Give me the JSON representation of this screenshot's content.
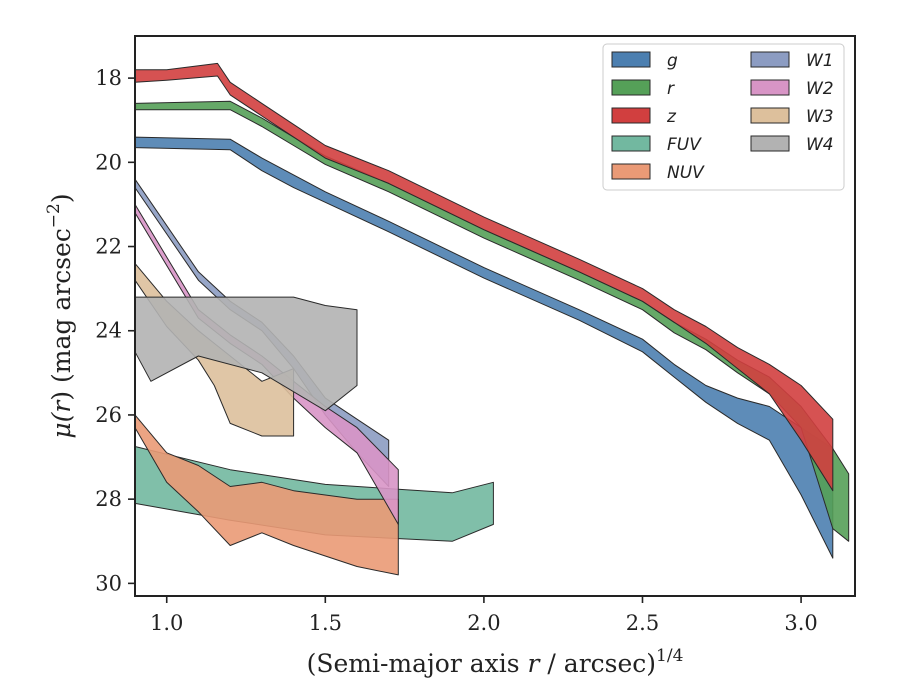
{
  "chart_data": {
    "type": "area",
    "title": "",
    "xlabel": "(Semi-major axis r / arcsec)",
    "xlabel_parts": {
      "pre": "(Semi-major axis ",
      "var": "r",
      "post": " / arcsec)",
      "exp": "1/4"
    },
    "ylabel": "μ(r) (mag arcsec−2)",
    "ylabel_parts": {
      "pre": "μ(",
      "var": "r",
      "post": ") (mag arcsec",
      "exp": "−2",
      "close": ")"
    },
    "xlim": [
      0.9,
      3.17
    ],
    "ylim": [
      30.3,
      17.0
    ],
    "y_inverted": true,
    "xticks": [
      1.0,
      1.5,
      2.0,
      2.5,
      3.0
    ],
    "xtick_labels": [
      "1.0",
      "1.5",
      "2.0",
      "2.5",
      "3.0"
    ],
    "yticks": [
      18,
      20,
      22,
      24,
      26,
      28,
      30
    ],
    "ytick_labels": [
      "18",
      "20",
      "22",
      "24",
      "26",
      "28",
      "30"
    ],
    "grid": false,
    "legend": {
      "position": "top-right",
      "columns": 2
    },
    "series": [
      {
        "name": "g",
        "color": "#4c7fb0",
        "upper": [
          [
            0.9,
            19.4
          ],
          [
            1.2,
            19.45
          ],
          [
            1.3,
            19.9
          ],
          [
            1.4,
            20.3
          ],
          [
            1.5,
            20.7
          ],
          [
            1.7,
            21.4
          ],
          [
            2.0,
            22.5
          ],
          [
            2.3,
            23.5
          ],
          [
            2.5,
            24.2
          ],
          [
            2.6,
            24.8
          ],
          [
            2.7,
            25.3
          ],
          [
            2.8,
            25.6
          ],
          [
            2.9,
            25.8
          ],
          [
            3.0,
            26.3
          ],
          [
            3.1,
            26.8
          ]
        ],
        "lower": [
          [
            0.9,
            19.65
          ],
          [
            1.2,
            19.7
          ],
          [
            1.3,
            20.2
          ],
          [
            1.4,
            20.6
          ],
          [
            1.5,
            20.95
          ],
          [
            1.7,
            21.65
          ],
          [
            2.0,
            22.75
          ],
          [
            2.3,
            23.75
          ],
          [
            2.5,
            24.5
          ],
          [
            2.6,
            25.1
          ],
          [
            2.7,
            25.7
          ],
          [
            2.8,
            26.2
          ],
          [
            2.9,
            26.6
          ],
          [
            3.0,
            27.9
          ],
          [
            3.1,
            29.4
          ]
        ]
      },
      {
        "name": "r",
        "color": "#55a058",
        "upper": [
          [
            0.9,
            18.6
          ],
          [
            1.2,
            18.55
          ],
          [
            1.3,
            18.95
          ],
          [
            1.4,
            19.4
          ],
          [
            1.5,
            19.85
          ],
          [
            1.7,
            20.5
          ],
          [
            2.0,
            21.6
          ],
          [
            2.3,
            22.6
          ],
          [
            2.5,
            23.3
          ],
          [
            2.6,
            23.8
          ],
          [
            2.7,
            24.2
          ],
          [
            2.8,
            24.7
          ],
          [
            2.9,
            25.1
          ],
          [
            3.0,
            25.8
          ],
          [
            3.1,
            26.8
          ],
          [
            3.15,
            27.4
          ]
        ],
        "lower": [
          [
            0.9,
            18.75
          ],
          [
            1.2,
            18.75
          ],
          [
            1.3,
            19.15
          ],
          [
            1.4,
            19.6
          ],
          [
            1.5,
            20.05
          ],
          [
            1.7,
            20.7
          ],
          [
            2.0,
            21.8
          ],
          [
            2.3,
            22.8
          ],
          [
            2.5,
            23.5
          ],
          [
            2.6,
            24.05
          ],
          [
            2.7,
            24.45
          ],
          [
            2.8,
            25.0
          ],
          [
            2.9,
            25.5
          ],
          [
            3.0,
            26.3
          ],
          [
            3.1,
            28.7
          ],
          [
            3.15,
            29.0
          ]
        ]
      },
      {
        "name": "z",
        "color": "#d13f3f",
        "upper": [
          [
            0.9,
            17.8
          ],
          [
            1.0,
            17.8
          ],
          [
            1.16,
            17.65
          ],
          [
            1.2,
            18.1
          ],
          [
            1.3,
            18.6
          ],
          [
            1.4,
            19.1
          ],
          [
            1.5,
            19.6
          ],
          [
            1.7,
            20.2
          ],
          [
            2.0,
            21.3
          ],
          [
            2.3,
            22.3
          ],
          [
            2.5,
            23.0
          ],
          [
            2.6,
            23.5
          ],
          [
            2.7,
            23.9
          ],
          [
            2.8,
            24.4
          ],
          [
            2.9,
            24.8
          ],
          [
            3.0,
            25.3
          ],
          [
            3.1,
            26.1
          ]
        ],
        "lower": [
          [
            0.9,
            18.1
          ],
          [
            1.0,
            18.05
          ],
          [
            1.16,
            17.95
          ],
          [
            1.2,
            18.4
          ],
          [
            1.3,
            18.9
          ],
          [
            1.4,
            19.4
          ],
          [
            1.5,
            19.9
          ],
          [
            1.7,
            20.5
          ],
          [
            2.0,
            21.6
          ],
          [
            2.3,
            22.6
          ],
          [
            2.5,
            23.3
          ],
          [
            2.6,
            23.8
          ],
          [
            2.7,
            24.3
          ],
          [
            2.8,
            24.9
          ],
          [
            2.9,
            25.5
          ],
          [
            3.0,
            26.6
          ],
          [
            3.1,
            27.8
          ]
        ]
      },
      {
        "name": "FUV",
        "color": "#72b8a0",
        "upper": [
          [
            0.9,
            26.75
          ],
          [
            1.2,
            27.3
          ],
          [
            1.5,
            27.65
          ],
          [
            1.9,
            27.85
          ],
          [
            2.03,
            27.6
          ]
        ],
        "lower": [
          [
            0.9,
            28.1
          ],
          [
            1.2,
            28.5
          ],
          [
            1.5,
            28.85
          ],
          [
            1.9,
            29.0
          ],
          [
            2.03,
            28.6
          ]
        ]
      },
      {
        "name": "NUV",
        "color": "#ea9a76",
        "upper": [
          [
            0.9,
            26.0
          ],
          [
            1.0,
            26.9
          ],
          [
            1.1,
            27.2
          ],
          [
            1.2,
            27.7
          ],
          [
            1.3,
            27.6
          ],
          [
            1.4,
            27.8
          ],
          [
            1.6,
            28.0
          ],
          [
            1.73,
            28.0
          ]
        ],
        "lower": [
          [
            0.9,
            26.3
          ],
          [
            1.0,
            27.6
          ],
          [
            1.1,
            28.3
          ],
          [
            1.2,
            29.1
          ],
          [
            1.3,
            28.8
          ],
          [
            1.4,
            29.1
          ],
          [
            1.6,
            29.6
          ],
          [
            1.73,
            29.8
          ]
        ]
      },
      {
        "name": "W1",
        "color": "#8c9cc2",
        "upper": [
          [
            0.9,
            20.4
          ],
          [
            1.1,
            22.6
          ],
          [
            1.2,
            23.3
          ],
          [
            1.3,
            23.8
          ],
          [
            1.4,
            24.6
          ],
          [
            1.5,
            25.6
          ],
          [
            1.6,
            26.1
          ],
          [
            1.7,
            26.6
          ]
        ],
        "lower": [
          [
            0.9,
            20.6
          ],
          [
            1.1,
            22.8
          ],
          [
            1.2,
            23.5
          ],
          [
            1.3,
            24.0
          ],
          [
            1.4,
            24.9
          ],
          [
            1.5,
            26.0
          ],
          [
            1.6,
            26.9
          ],
          [
            1.7,
            27.7
          ]
        ]
      },
      {
        "name": "W2",
        "color": "#d895c6",
        "upper": [
          [
            0.9,
            21.0
          ],
          [
            1.1,
            23.5
          ],
          [
            1.2,
            24.1
          ],
          [
            1.3,
            24.6
          ],
          [
            1.4,
            25.2
          ],
          [
            1.5,
            25.8
          ],
          [
            1.6,
            26.3
          ],
          [
            1.73,
            27.3
          ]
        ],
        "lower": [
          [
            0.9,
            21.2
          ],
          [
            1.1,
            23.7
          ],
          [
            1.2,
            24.3
          ],
          [
            1.3,
            24.8
          ],
          [
            1.4,
            25.6
          ],
          [
            1.5,
            26.3
          ],
          [
            1.6,
            26.9
          ],
          [
            1.73,
            28.6
          ]
        ]
      },
      {
        "name": "W3",
        "color": "#ddc09c",
        "upper": [
          [
            0.9,
            22.4
          ],
          [
            1.0,
            23.3
          ],
          [
            1.1,
            24.0
          ],
          [
            1.15,
            24.3
          ],
          [
            1.2,
            24.6
          ],
          [
            1.3,
            25.2
          ],
          [
            1.4,
            24.9
          ]
        ],
        "lower": [
          [
            0.9,
            22.8
          ],
          [
            1.0,
            23.9
          ],
          [
            1.1,
            24.7
          ],
          [
            1.15,
            25.3
          ],
          [
            1.2,
            26.2
          ],
          [
            1.3,
            26.5
          ],
          [
            1.4,
            26.5
          ]
        ]
      },
      {
        "name": "W4",
        "color": "#b2b2b2",
        "upper": [
          [
            0.9,
            23.2
          ],
          [
            1.0,
            23.2
          ],
          [
            1.2,
            23.2
          ],
          [
            1.4,
            23.2
          ],
          [
            1.5,
            23.4
          ],
          [
            1.6,
            23.5
          ]
        ],
        "lower": [
          [
            0.9,
            24.5
          ],
          [
            0.95,
            25.2
          ],
          [
            1.1,
            24.6
          ],
          [
            1.3,
            25.0
          ],
          [
            1.5,
            25.9
          ],
          [
            1.6,
            25.3
          ]
        ]
      }
    ]
  }
}
